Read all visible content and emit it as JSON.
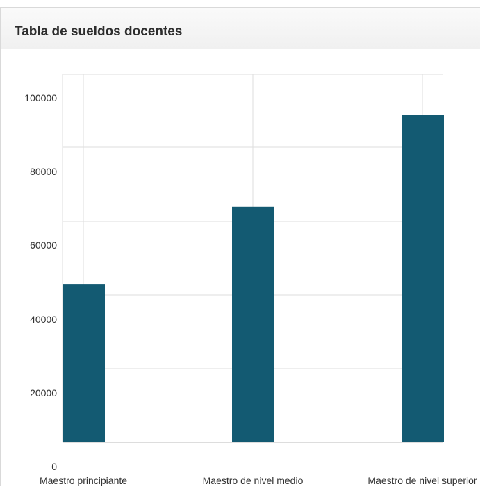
{
  "panel": {
    "title": "Tabla de sueldos docentes"
  },
  "chart_data": {
    "type": "bar",
    "title": "",
    "xlabel": "",
    "ylabel": "",
    "categories": [
      "Maestro principiante",
      "Maestro de nivel medio",
      "Maestro de nivel superior"
    ],
    "values": [
      43000,
      64000,
      89000
    ],
    "ylim": [
      0,
      100000
    ],
    "yticks": [
      0,
      20000,
      40000,
      60000,
      80000,
      100000
    ],
    "ytick_labels": [
      "0",
      "20000",
      "40000",
      "60000",
      "80000",
      "100000"
    ],
    "grid": true,
    "legend": "none",
    "colors": {
      "bar": "#135a72",
      "grid": "#dddddd",
      "axis": "#bbbbbb"
    }
  }
}
